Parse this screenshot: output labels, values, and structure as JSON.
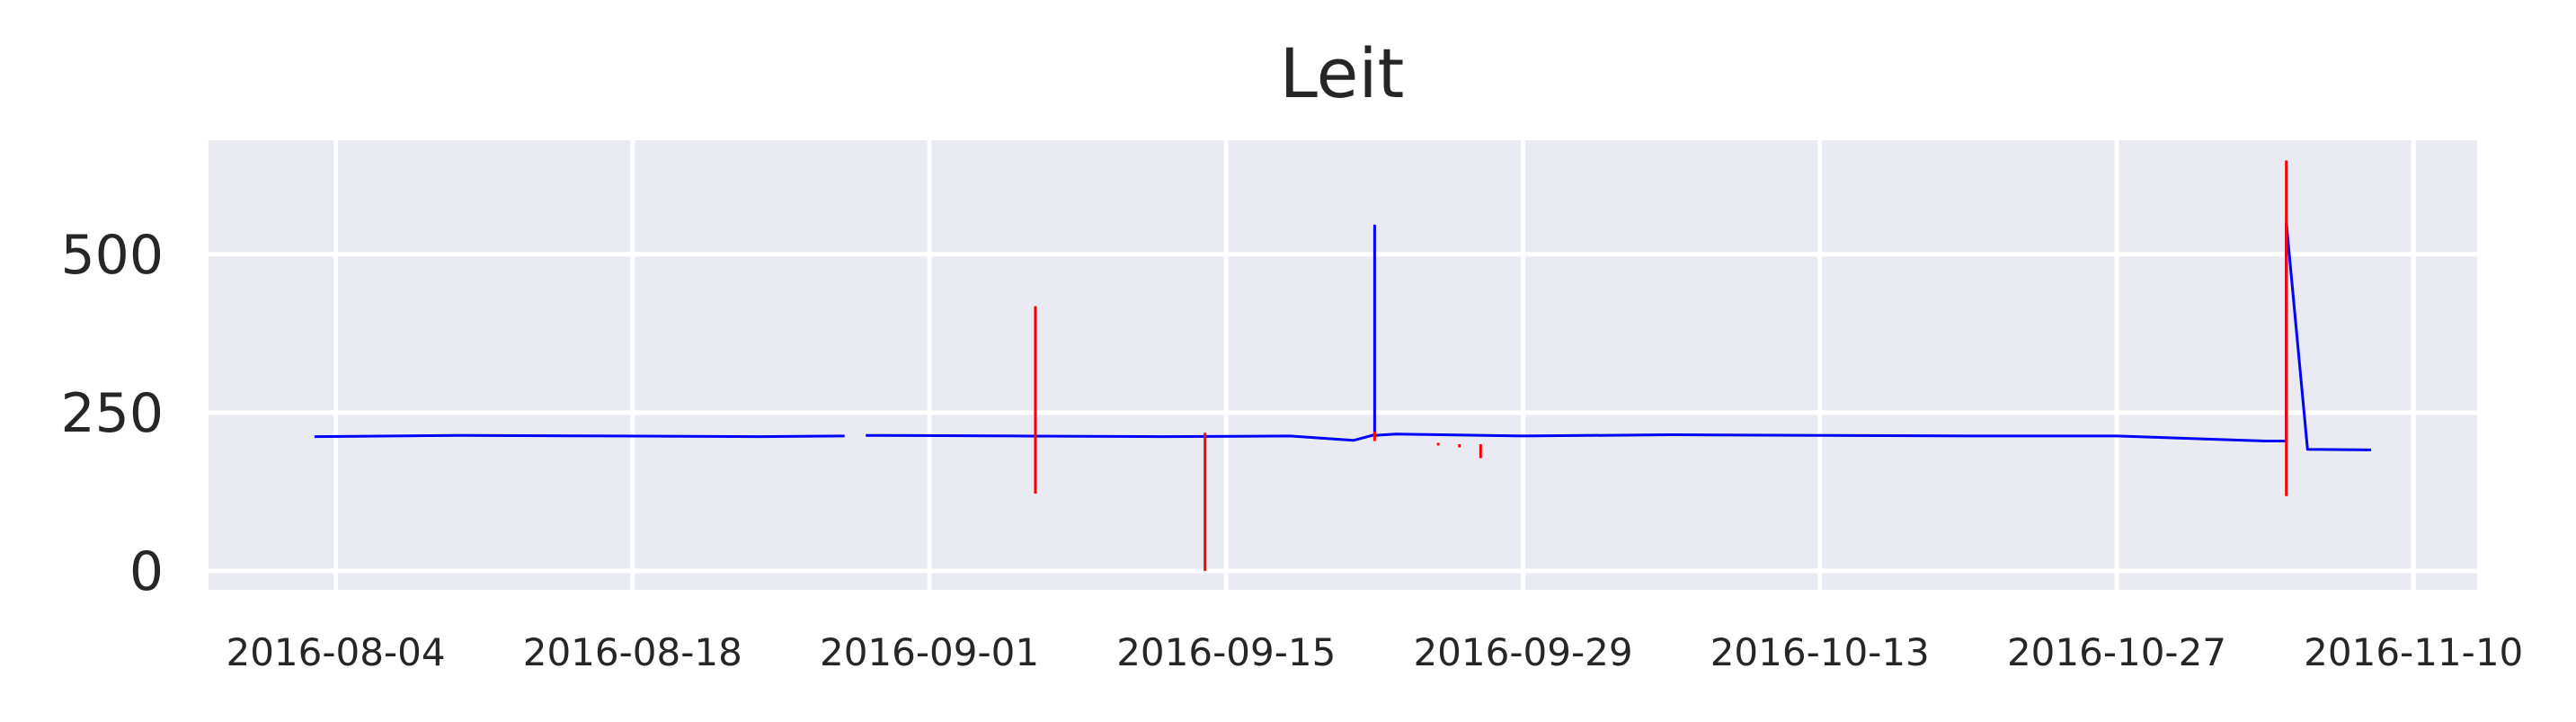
{
  "chart_data": {
    "type": "line",
    "title": "Leit",
    "xlabel": "",
    "ylabel": "",
    "x_ticks": [
      "2016-08-04",
      "2016-08-18",
      "2016-09-01",
      "2016-09-15",
      "2016-09-29",
      "2016-10-13",
      "2016-10-27",
      "2016-11-10"
    ],
    "y_ticks": [
      0,
      250,
      500
    ],
    "xlim": [
      "2016-07-29",
      "2016-11-13"
    ],
    "ylim": [
      -30,
      680
    ],
    "grid": true,
    "legend": "none",
    "colors": {
      "background": "#eaeaf2",
      "grid": "#ffffff",
      "normal": "#0000ff",
      "anomaly": "#ff0000"
    },
    "series": [
      {
        "role": "normal",
        "x": [
          "2016-08-03",
          "2016-08-10",
          "2016-08-17",
          "2016-08-24",
          "2016-08-28"
        ],
        "values": [
          212,
          214,
          213,
          212,
          213
        ]
      },
      {
        "role": "normal",
        "x": [
          "2016-08-29",
          "2016-09-05",
          "2016-09-12",
          "2016-09-18",
          "2016-09-21",
          "2016-09-22",
          "2016-09-22",
          "2016-09-22",
          "2016-09-23",
          "2016-09-29",
          "2016-10-06",
          "2016-10-13",
          "2016-10-20",
          "2016-10-27",
          "2016-11-03",
          "2016-11-04",
          "2016-11-04",
          "2016-11-05",
          "2016-11-08"
        ],
        "values": [
          214,
          213,
          212,
          213,
          206,
          215,
          545,
          214,
          216,
          213,
          215,
          214,
          213,
          213,
          205,
          205,
          550,
          192,
          191
        ]
      }
    ],
    "anomalies": [
      {
        "x": "2016-09-06",
        "low": 122,
        "high": 418
      },
      {
        "x": "2016-09-14",
        "low": 0,
        "high": 218
      },
      {
        "x": "2016-09-22",
        "low": 205,
        "high": 220
      },
      {
        "x": "2016-09-25",
        "low": 198,
        "high": 202
      },
      {
        "x": "2016-09-26",
        "low": 195,
        "high": 200
      },
      {
        "x": "2016-09-27",
        "low": 178,
        "high": 200
      },
      {
        "x": "2016-11-04",
        "low": 118,
        "high": 648
      }
    ]
  }
}
